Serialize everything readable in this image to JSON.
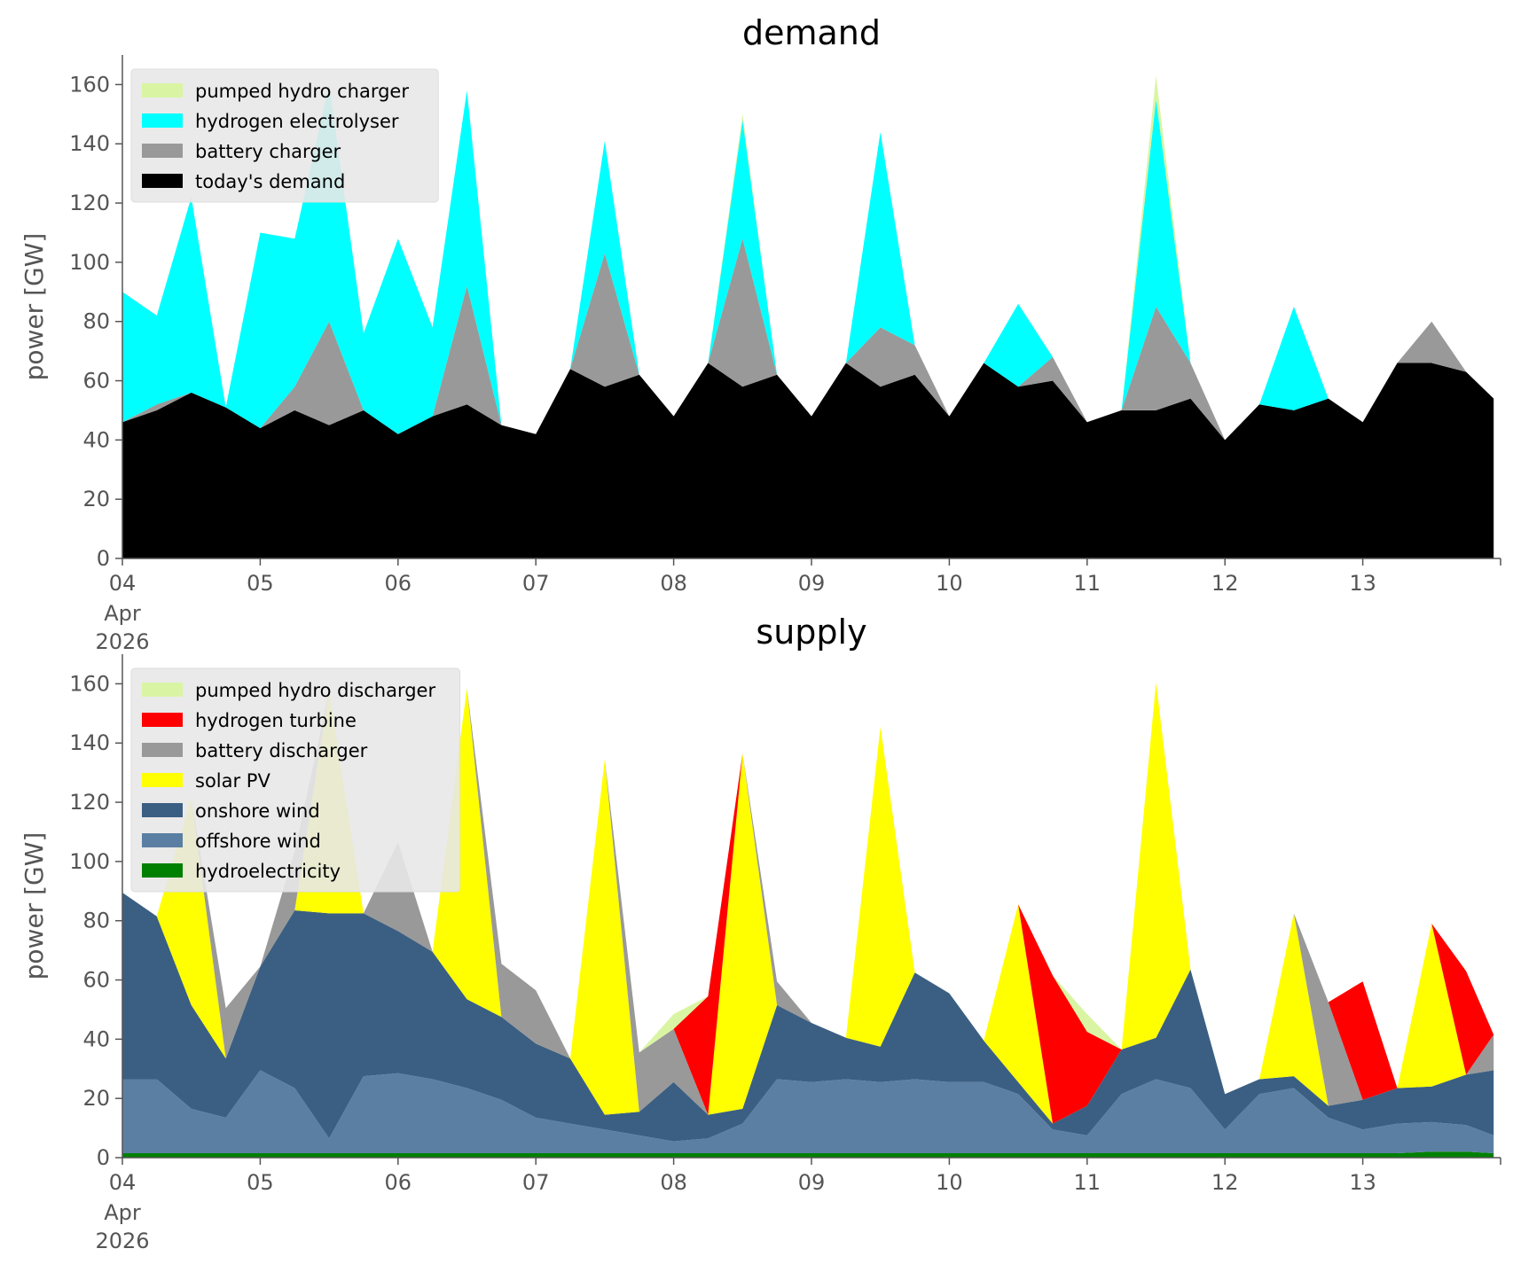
{
  "chart_data": [
    {
      "type": "area",
      "stacked": true,
      "title": "demand",
      "ylabel": "power [GW]",
      "xlabel": "",
      "ylim": [
        0,
        170
      ],
      "yticks": [
        0,
        20,
        40,
        60,
        80,
        100,
        120,
        140,
        160
      ],
      "xlim": [
        "2026-04-04",
        "2026-04-14"
      ],
      "xtick_labels": [
        "04",
        "05",
        "06",
        "07",
        "08",
        "09",
        "10",
        "11",
        "12",
        "13"
      ],
      "xtick_sublabels": [
        "Apr",
        "2026"
      ],
      "grid": false,
      "legend": "top-left",
      "x_days": [
        0.0,
        0.25,
        0.5,
        0.75,
        1.0,
        1.25,
        1.5,
        1.75,
        2.0,
        2.25,
        2.5,
        2.75,
        3.0,
        3.25,
        3.5,
        3.75,
        4.0,
        4.25,
        4.5,
        4.75,
        5.0,
        5.25,
        5.5,
        5.75,
        6.0,
        6.25,
        6.5,
        6.75,
        7.0,
        7.25,
        7.5,
        7.75,
        8.0,
        8.25,
        8.5,
        8.75,
        9.0,
        9.25,
        9.5,
        9.75,
        9.95
      ],
      "series": [
        {
          "name": "today's demand",
          "color": "#000000",
          "values": [
            46,
            50,
            56,
            51,
            44,
            50,
            45,
            50,
            42,
            48,
            52,
            45,
            42,
            64,
            58,
            62,
            48,
            66,
            58,
            62,
            48,
            66,
            58,
            62,
            48,
            66,
            58,
            60,
            46,
            50,
            50,
            54,
            40,
            52,
            50,
            54,
            46,
            66,
            66,
            63,
            54
          ]
        },
        {
          "name": "battery charger",
          "color": "#999999",
          "values": [
            0,
            2,
            0,
            0,
            0,
            8,
            35,
            0,
            0,
            0,
            40,
            0,
            0,
            0,
            45,
            0,
            0,
            0,
            50,
            0,
            0,
            0,
            20,
            10,
            0,
            0,
            0,
            8,
            0,
            0,
            35,
            12,
            0,
            0,
            0,
            0,
            0,
            0,
            14,
            0,
            0
          ]
        },
        {
          "name": "hydrogen electrolyser",
          "color": "#00ffff",
          "values": [
            44,
            30,
            66,
            0,
            66,
            50,
            80,
            26,
            66,
            30,
            66,
            0,
            0,
            0,
            38,
            0,
            0,
            0,
            40,
            0,
            0,
            0,
            66,
            0,
            0,
            0,
            28,
            0,
            0,
            0,
            70,
            0,
            0,
            0,
            35,
            0,
            0,
            0,
            0,
            0,
            0
          ]
        },
        {
          "name": "pumped hydro charger",
          "color": "#d9f5a3",
          "values": [
            0,
            0,
            0,
            0,
            0,
            0,
            0,
            0,
            0,
            0,
            0,
            0,
            0,
            0,
            0,
            0,
            0,
            0,
            2,
            0,
            0,
            0,
            0,
            0,
            0,
            0,
            0,
            0,
            0,
            0,
            8,
            0,
            0,
            0,
            0,
            0,
            0,
            0,
            0,
            0,
            0
          ]
        }
      ]
    },
    {
      "type": "area",
      "stacked": true,
      "title": "supply",
      "ylabel": "power [GW]",
      "xlabel": "",
      "ylim": [
        0,
        170
      ],
      "yticks": [
        0,
        20,
        40,
        60,
        80,
        100,
        120,
        140,
        160
      ],
      "xlim": [
        "2026-04-04",
        "2026-04-14"
      ],
      "xtick_labels": [
        "04",
        "05",
        "06",
        "07",
        "08",
        "09",
        "10",
        "11",
        "12",
        "13"
      ],
      "xtick_sublabels": [
        "Apr",
        "2026"
      ],
      "grid": false,
      "legend": "top-left",
      "x_days": [
        0.0,
        0.25,
        0.5,
        0.75,
        1.0,
        1.25,
        1.5,
        1.75,
        2.0,
        2.25,
        2.5,
        2.75,
        3.0,
        3.25,
        3.5,
        3.75,
        4.0,
        4.25,
        4.5,
        4.75,
        5.0,
        5.25,
        5.5,
        5.75,
        6.0,
        6.25,
        6.5,
        6.75,
        7.0,
        7.25,
        7.5,
        7.75,
        8.0,
        8.25,
        8.5,
        8.75,
        9.0,
        9.25,
        9.5,
        9.75,
        9.95
      ],
      "series": [
        {
          "name": "hydroelectricity",
          "color": "#008000",
          "values": [
            1.5,
            1.5,
            1.5,
            1.5,
            1.5,
            1.5,
            1.5,
            1.5,
            1.5,
            1.5,
            1.5,
            1.5,
            1.5,
            1.5,
            1.5,
            1.5,
            1.5,
            1.5,
            1.5,
            1.5,
            1.5,
            1.5,
            1.5,
            1.5,
            1.5,
            1.5,
            1.5,
            1.5,
            1.5,
            1.5,
            1.5,
            1.5,
            1.5,
            1.5,
            1.5,
            1.5,
            1.5,
            1.5,
            2,
            2,
            1.5
          ]
        },
        {
          "name": "offshore wind",
          "color": "#5b7fa3",
          "values": [
            25,
            25,
            15,
            12,
            28,
            22,
            5,
            26,
            27,
            25,
            22,
            18,
            12,
            10,
            8,
            6,
            4,
            5,
            10,
            25,
            24,
            25,
            24,
            25,
            24,
            24,
            20,
            8,
            6,
            20,
            25,
            22,
            8,
            20,
            22,
            12,
            8,
            10,
            10,
            9,
            6
          ]
        },
        {
          "name": "onshore wind",
          "color": "#3b5f82",
          "values": [
            63,
            55,
            35,
            20,
            35,
            60,
            76,
            55,
            48,
            43,
            30,
            28,
            25,
            22,
            5,
            8,
            20,
            8,
            5,
            25,
            20,
            14,
            12,
            36,
            30,
            14,
            4,
            2,
            10,
            15,
            14,
            40,
            12,
            5,
            4,
            4,
            10,
            12,
            12,
            17,
            22
          ]
        },
        {
          "name": "solar PV",
          "color": "#ffff00",
          "values": [
            0,
            0,
            70,
            0,
            0,
            0,
            75,
            0,
            0,
            0,
            105,
            0,
            0,
            0,
            120,
            0,
            0,
            0,
            120,
            0,
            0,
            0,
            108,
            0,
            0,
            0,
            60,
            0,
            0,
            0,
            120,
            0,
            0,
            0,
            55,
            0,
            0,
            0,
            55,
            0,
            0
          ]
        },
        {
          "name": "battery discharger",
          "color": "#999999",
          "values": [
            0,
            0,
            0,
            17,
            0,
            20,
            0,
            0,
            30,
            0,
            0,
            18,
            18,
            0,
            0,
            20,
            18,
            0,
            0,
            8,
            0,
            0,
            0,
            0,
            0,
            0,
            0,
            0,
            0,
            0,
            0,
            0,
            0,
            0,
            0,
            35,
            0,
            0,
            0,
            0,
            12
          ]
        },
        {
          "name": "hydrogen turbine",
          "color": "#ff0000",
          "values": [
            0,
            0,
            0,
            0,
            0,
            0,
            0,
            0,
            0,
            0,
            0,
            0,
            0,
            0,
            0,
            0,
            0,
            40,
            0,
            0,
            0,
            0,
            0,
            0,
            0,
            0,
            0,
            50,
            25,
            0,
            0,
            0,
            0,
            0,
            0,
            0,
            40,
            0,
            0,
            35,
            0
          ]
        },
        {
          "name": "pumped hydro discharger",
          "color": "#d9f5a3",
          "values": [
            0,
            0,
            0,
            0,
            0,
            0,
            0,
            0,
            0,
            0,
            0,
            0,
            0,
            0,
            0,
            0,
            5,
            0,
            0,
            0,
            0,
            0,
            0,
            0,
            0,
            0,
            0,
            0,
            6,
            0,
            0,
            0,
            0,
            0,
            0,
            0,
            0,
            0,
            0,
            0,
            0
          ]
        }
      ]
    }
  ]
}
